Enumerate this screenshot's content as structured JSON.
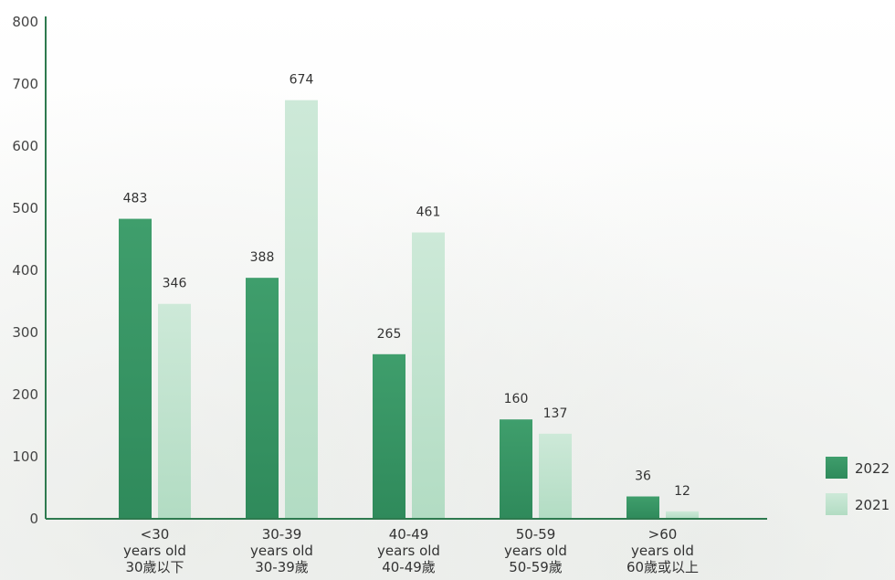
{
  "chart_data": {
    "type": "bar",
    "categories": [
      [
        "<30",
        "years old",
        "30歲以下"
      ],
      [
        "30-39",
        "years old",
        "30-39歲"
      ],
      [
        "40-49",
        "years old",
        "40-49歲"
      ],
      [
        "50-59",
        "years old",
        "50-59歲"
      ],
      [
        ">60",
        "years old",
        "60歲或以上"
      ]
    ],
    "series": [
      {
        "name": "2022",
        "values": [
          483,
          388,
          265,
          160,
          36
        ]
      },
      {
        "name": "2021",
        "values": [
          346,
          674,
          461,
          137,
          12
        ]
      }
    ],
    "ylim": [
      0,
      800
    ],
    "yticks": [
      0,
      100,
      200,
      300,
      400,
      500,
      600,
      700,
      800
    ],
    "legend_position": "bottom-right",
    "grid": false,
    "colors": {
      "series_2022_top": "#3f9e6c",
      "series_2022_bottom": "#2f8a5b",
      "series_2021_top": "#cde9d8",
      "series_2021_bottom": "#b2dcc3",
      "axis": "#2e7a4f"
    }
  }
}
